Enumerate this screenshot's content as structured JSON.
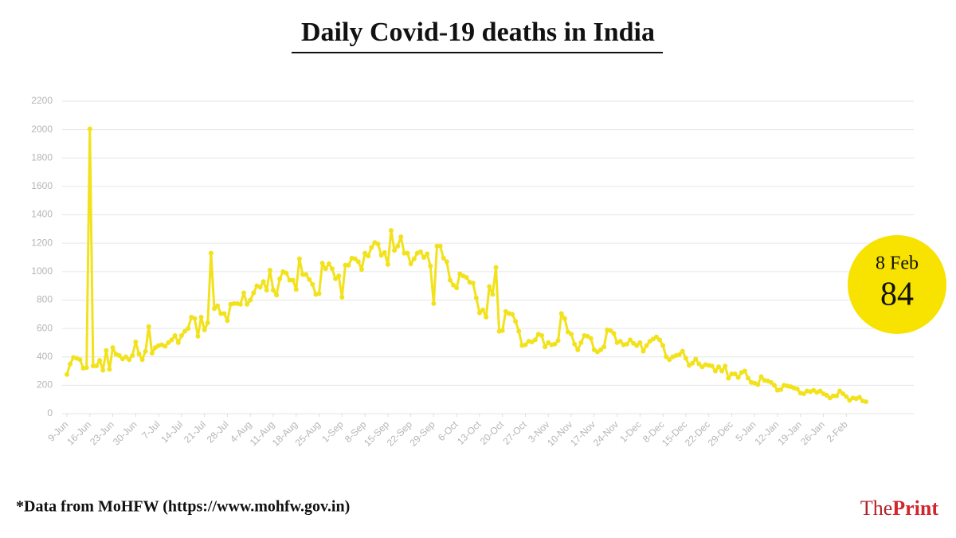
{
  "chart_data": {
    "type": "line",
    "title": "Daily Covid-19 deaths in India",
    "source": "*Data from MoHFW (https://www.mohfw.gov.in)",
    "logo": [
      "The",
      "Print"
    ],
    "annotation": "8 Feb",
    "color": "#f2e21c",
    "grid": true,
    "ylim": [
      0,
      2200
    ],
    "yticks": [
      0,
      200,
      400,
      600,
      800,
      1000,
      1200,
      1400,
      1600,
      1800,
      2000,
      2200
    ],
    "categories": [
      "9-Jun",
      null,
      null,
      null,
      null,
      null,
      null,
      "16-Jun",
      null,
      null,
      null,
      null,
      null,
      null,
      "23-Jun",
      null,
      null,
      null,
      null,
      null,
      null,
      "30-Jun",
      null,
      null,
      null,
      null,
      null,
      null,
      "7-Jul",
      null,
      null,
      null,
      null,
      null,
      null,
      "14-Jul",
      null,
      null,
      null,
      null,
      null,
      null,
      "21-Jul",
      null,
      null,
      null,
      null,
      null,
      null,
      "28-Jul",
      null,
      null,
      null,
      null,
      null,
      null,
      "4-Aug",
      null,
      null,
      null,
      null,
      null,
      null,
      "11-Aug",
      null,
      null,
      null,
      null,
      null,
      null,
      "18-Aug",
      null,
      null,
      null,
      null,
      null,
      null,
      "25-Aug",
      null,
      null,
      null,
      null,
      null,
      null,
      "1-Sep",
      null,
      null,
      null,
      null,
      null,
      null,
      "8-Sep",
      null,
      null,
      null,
      null,
      null,
      null,
      "15-Sep",
      null,
      null,
      null,
      null,
      null,
      null,
      "22-Sep",
      null,
      null,
      null,
      null,
      null,
      null,
      "29-Sep",
      null,
      null,
      null,
      null,
      null,
      null,
      "6-Oct",
      null,
      null,
      null,
      null,
      null,
      null,
      "13-Oct",
      null,
      null,
      null,
      null,
      null,
      null,
      "20-Oct",
      null,
      null,
      null,
      null,
      null,
      null,
      "27-Oct",
      null,
      null,
      null,
      null,
      null,
      null,
      "3-Nov",
      null,
      null,
      null,
      null,
      null,
      null,
      "10-Nov",
      null,
      null,
      null,
      null,
      null,
      null,
      "17-Nov",
      null,
      null,
      null,
      null,
      null,
      null,
      "24-Nov",
      null,
      null,
      null,
      null,
      null,
      null,
      "1-Dec",
      null,
      null,
      null,
      null,
      null,
      null,
      "8-Dec",
      null,
      null,
      null,
      null,
      null,
      null,
      "15-Dec",
      null,
      null,
      null,
      null,
      null,
      null,
      "22-Dec",
      null,
      null,
      null,
      null,
      null,
      null,
      "29-Dec",
      null,
      null,
      null,
      null,
      null,
      null,
      "5-Jan",
      null,
      null,
      null,
      null,
      null,
      null,
      "12-Jan",
      null,
      null,
      null,
      null,
      null,
      null,
      "19-Jan",
      null,
      null,
      null,
      null,
      null,
      null,
      "26-Jan",
      null,
      null,
      null,
      null,
      null,
      null,
      "2-Feb",
      null,
      null,
      null,
      null,
      null,
      null
    ],
    "values": [
      276,
      350,
      396,
      390,
      380,
      320,
      325,
      2006,
      336,
      336,
      375,
      306,
      445,
      312,
      465,
      418,
      410,
      385,
      400,
      380,
      410,
      505,
      420,
      380,
      440,
      613,
      425,
      465,
      480,
      485,
      475,
      500,
      520,
      550,
      500,
      550,
      580,
      600,
      680,
      670,
      545,
      680,
      590,
      640,
      1130,
      740,
      760,
      705,
      705,
      655,
      770,
      775,
      775,
      770,
      850,
      770,
      800,
      850,
      900,
      890,
      930,
      870,
      1010,
      870,
      835,
      950,
      1000,
      990,
      940,
      940,
      875,
      1090,
      980,
      980,
      945,
      910,
      840,
      845,
      1060,
      1020,
      1055,
      1020,
      950,
      970,
      820,
      1045,
      1045,
      1095,
      1090,
      1070,
      1015,
      1130,
      1110,
      1170,
      1205,
      1195,
      1115,
      1135,
      1050,
      1290,
      1150,
      1180,
      1245,
      1130,
      1130,
      1055,
      1090,
      1130,
      1140,
      1100,
      1125,
      1040,
      775,
      1180,
      1180,
      1095,
      1070,
      940,
      905,
      885,
      985,
      970,
      960,
      925,
      920,
      815,
      710,
      730,
      680,
      895,
      840,
      1030,
      580,
      585,
      720,
      705,
      700,
      650,
      580,
      480,
      485,
      510,
      505,
      520,
      560,
      550,
      470,
      500,
      485,
      490,
      515,
      705,
      670,
      575,
      560,
      490,
      450,
      500,
      550,
      545,
      530,
      450,
      435,
      450,
      470,
      590,
      585,
      565,
      500,
      510,
      485,
      490,
      520,
      495,
      480,
      500,
      440,
      480,
      510,
      525,
      540,
      520,
      480,
      400,
      380,
      400,
      410,
      415,
      440,
      390,
      340,
      355,
      385,
      350,
      330,
      345,
      340,
      335,
      300,
      330,
      300,
      335,
      250,
      280,
      280,
      255,
      290,
      300,
      250,
      220,
      215,
      205,
      260,
      235,
      230,
      220,
      200,
      165,
      170,
      200,
      195,
      190,
      180,
      175,
      145,
      140,
      160,
      155,
      165,
      150,
      160,
      140,
      130,
      110,
      125,
      125,
      160,
      140,
      120,
      95,
      110,
      105,
      115,
      90,
      84
    ]
  }
}
